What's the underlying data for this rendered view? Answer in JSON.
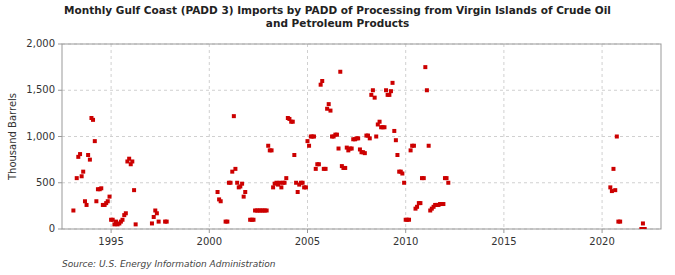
{
  "chart_data": {
    "type": "scatter",
    "title": "Monthly Gulf Coast (PADD 3) Imports by PADD of Processing from Virgin Islands of Crude Oil\nand Petroleum Products",
    "ylabel": "Thousand Barrels",
    "source": "Source: U.S. Energy Information Administration",
    "color": "#cc0000",
    "marker": "square",
    "grid": true,
    "xlim": [
      1992.5,
      2023.0
    ],
    "xticks": [
      1995,
      2000,
      2005,
      2010,
      2015,
      2020
    ],
    "ylim": [
      0,
      2000
    ],
    "yticks": [
      0,
      500,
      {
        "value": 1000,
        "label": "1,000"
      },
      {
        "value": 1500,
        "label": "1,500"
      },
      {
        "value": 2000,
        "label": "2,000"
      }
    ],
    "x": [
      1993.08,
      1993.25,
      1993.33,
      1993.42,
      1993.5,
      1993.58,
      1993.67,
      1993.75,
      1993.83,
      1993.92,
      1994.0,
      1994.08,
      1994.25,
      1994.33,
      1994.42,
      1994.5,
      1994.58,
      1994.67,
      1994.75,
      1994.83,
      1994.92,
      1994.17,
      1995.0,
      1995.08,
      1995.17,
      1995.25,
      1995.33,
      1995.42,
      1995.5,
      1995.58,
      1995.67,
      1995.75,
      1995.83,
      1995.92,
      1996.0,
      1996.08,
      1996.17,
      1996.25,
      1997.08,
      1997.17,
      1997.25,
      1997.33,
      1997.42,
      1997.75,
      1997.83,
      2000.42,
      2000.5,
      2000.58,
      2000.83,
      2000.92,
      2001.0,
      2001.08,
      2001.17,
      2001.25,
      2001.33,
      2001.42,
      2001.5,
      2001.58,
      2001.67,
      2001.75,
      2001.83,
      2002.08,
      2002.17,
      2002.25,
      2002.33,
      2002.42,
      2002.5,
      2002.58,
      2002.67,
      2002.75,
      2002.83,
      2002.92,
      2003.0,
      2003.08,
      2003.17,
      2003.25,
      2003.33,
      2003.42,
      2003.5,
      2003.58,
      2003.67,
      2003.75,
      2003.83,
      2003.92,
      2004.0,
      2004.08,
      2004.17,
      2004.25,
      2004.33,
      2004.42,
      2004.5,
      2004.58,
      2004.67,
      2004.75,
      2004.83,
      2004.92,
      2005.0,
      2005.08,
      2005.17,
      2005.25,
      2005.33,
      2005.42,
      2005.5,
      2005.58,
      2005.67,
      2005.75,
      2005.83,
      2005.92,
      2006.0,
      2006.08,
      2006.17,
      2006.25,
      2006.33,
      2006.42,
      2006.5,
      2006.58,
      2006.67,
      2006.75,
      2006.83,
      2006.92,
      2007.0,
      2007.08,
      2007.17,
      2007.25,
      2007.33,
      2007.42,
      2007.5,
      2007.58,
      2007.67,
      2007.75,
      2007.83,
      2007.92,
      2008.0,
      2008.08,
      2008.17,
      2008.25,
      2008.33,
      2008.42,
      2008.5,
      2008.58,
      2008.67,
      2008.75,
      2008.83,
      2008.92,
      2009.0,
      2009.08,
      2009.17,
      2009.25,
      2009.33,
      2009.42,
      2009.5,
      2009.58,
      2009.67,
      2009.75,
      2009.83,
      2009.92,
      2010.0,
      2010.08,
      2010.17,
      2010.25,
      2010.33,
      2010.42,
      2010.5,
      2010.58,
      2010.67,
      2010.75,
      2010.83,
      2010.92,
      2011.0,
      2011.08,
      2011.17,
      2011.25,
      2011.33,
      2011.42,
      2011.5,
      2011.58,
      2011.67,
      2011.75,
      2011.83,
      2011.92,
      2012.0,
      2012.08,
      2012.17,
      2020.42,
      2020.5,
      2020.58,
      2020.67,
      2020.75,
      2020.83,
      2020.92,
      2022.0,
      2022.08,
      2022.17
    ],
    "values": [
      200,
      550,
      780,
      810,
      570,
      620,
      300,
      260,
      800,
      750,
      1200,
      1180,
      300,
      430,
      430,
      440,
      260,
      260,
      280,
      300,
      350,
      950,
      100,
      100,
      50,
      80,
      50,
      60,
      80,
      100,
      150,
      170,
      730,
      760,
      700,
      730,
      420,
      50,
      60,
      130,
      200,
      170,
      80,
      80,
      80,
      400,
      320,
      300,
      80,
      80,
      500,
      500,
      620,
      1220,
      650,
      500,
      450,
      460,
      490,
      350,
      400,
      100,
      100,
      100,
      200,
      200,
      200,
      200,
      200,
      200,
      200,
      200,
      900,
      850,
      850,
      450,
      490,
      500,
      480,
      500,
      450,
      500,
      500,
      550,
      1200,
      1190,
      1160,
      1160,
      800,
      500,
      400,
      480,
      500,
      500,
      450,
      450,
      950,
      900,
      1000,
      1000,
      1000,
      650,
      700,
      700,
      1560,
      1600,
      650,
      650,
      1300,
      1350,
      1280,
      1000,
      1000,
      1020,
      1020,
      870,
      1700,
      680,
      660,
      660,
      880,
      850,
      870,
      870,
      970,
      970,
      980,
      980,
      860,
      830,
      830,
      820,
      1010,
      1010,
      980,
      1450,
      1500,
      1420,
      1000,
      1130,
      1160,
      1100,
      1100,
      1100,
      1500,
      1450,
      1450,
      1490,
      1580,
      1060,
      960,
      800,
      620,
      620,
      600,
      500,
      100,
      100,
      100,
      850,
      900,
      900,
      220,
      240,
      280,
      280,
      550,
      550,
      1750,
      1500,
      900,
      200,
      220,
      240,
      260,
      260,
      260,
      270,
      270,
      270,
      550,
      550,
      500,
      450,
      410,
      650,
      420,
      1000,
      80,
      80,
      0,
      60,
      0
    ]
  }
}
